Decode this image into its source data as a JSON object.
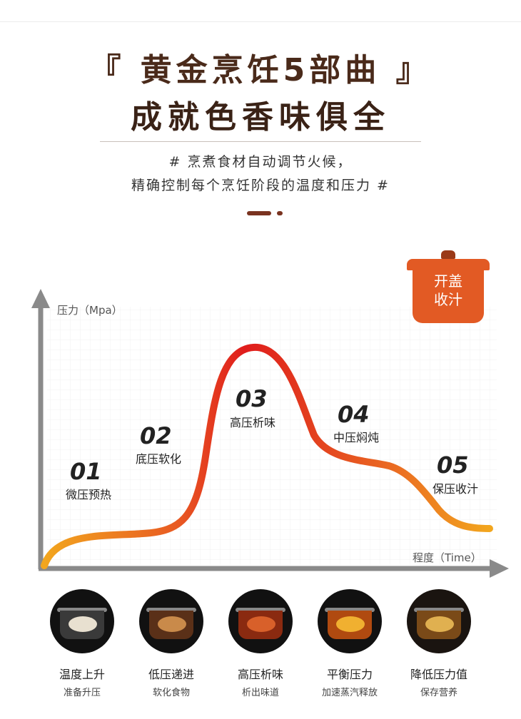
{
  "header": {
    "title_line1": "『 黄金烹饪5部曲 』",
    "title_line2": "成就色香味俱全",
    "subtitle_line1": "# 烹煮食材自动调节火候，",
    "subtitle_line2": "精确控制每个烹饪阶段的温度和压力 #"
  },
  "chart": {
    "y_axis_label": "压力（Mpa）",
    "x_axis_label": "程度（Time）",
    "stages": [
      {
        "number": "01",
        "label": "微压预热"
      },
      {
        "number": "02",
        "label": "底压软化"
      },
      {
        "number": "03",
        "label": "高压析味"
      },
      {
        "number": "04",
        "label": "中压焖炖"
      },
      {
        "number": "05",
        "label": "保压收汁"
      }
    ],
    "pot_badge": {
      "line1": "开盖",
      "line2": "收汁"
    },
    "colors": {
      "low": "#f0a020",
      "high": "#e0201c",
      "axis": "#8a8a8a",
      "accent": "#e25a24"
    }
  },
  "steps": [
    {
      "title": "温度上升",
      "subtitle": "准备升压",
      "tint": "#d8d0c0"
    },
    {
      "title": "低压递进",
      "subtitle": "软化食物",
      "tint": "#c98a4a"
    },
    {
      "title": "高压析味",
      "subtitle": "析出味道",
      "tint": "#d8602a"
    },
    {
      "title": "平衡压力",
      "subtitle": "加速蒸汽释放",
      "tint": "#e8a030"
    },
    {
      "title": "降低压力值",
      "subtitle": "保存营养",
      "tint": "#e0b050"
    }
  ]
}
